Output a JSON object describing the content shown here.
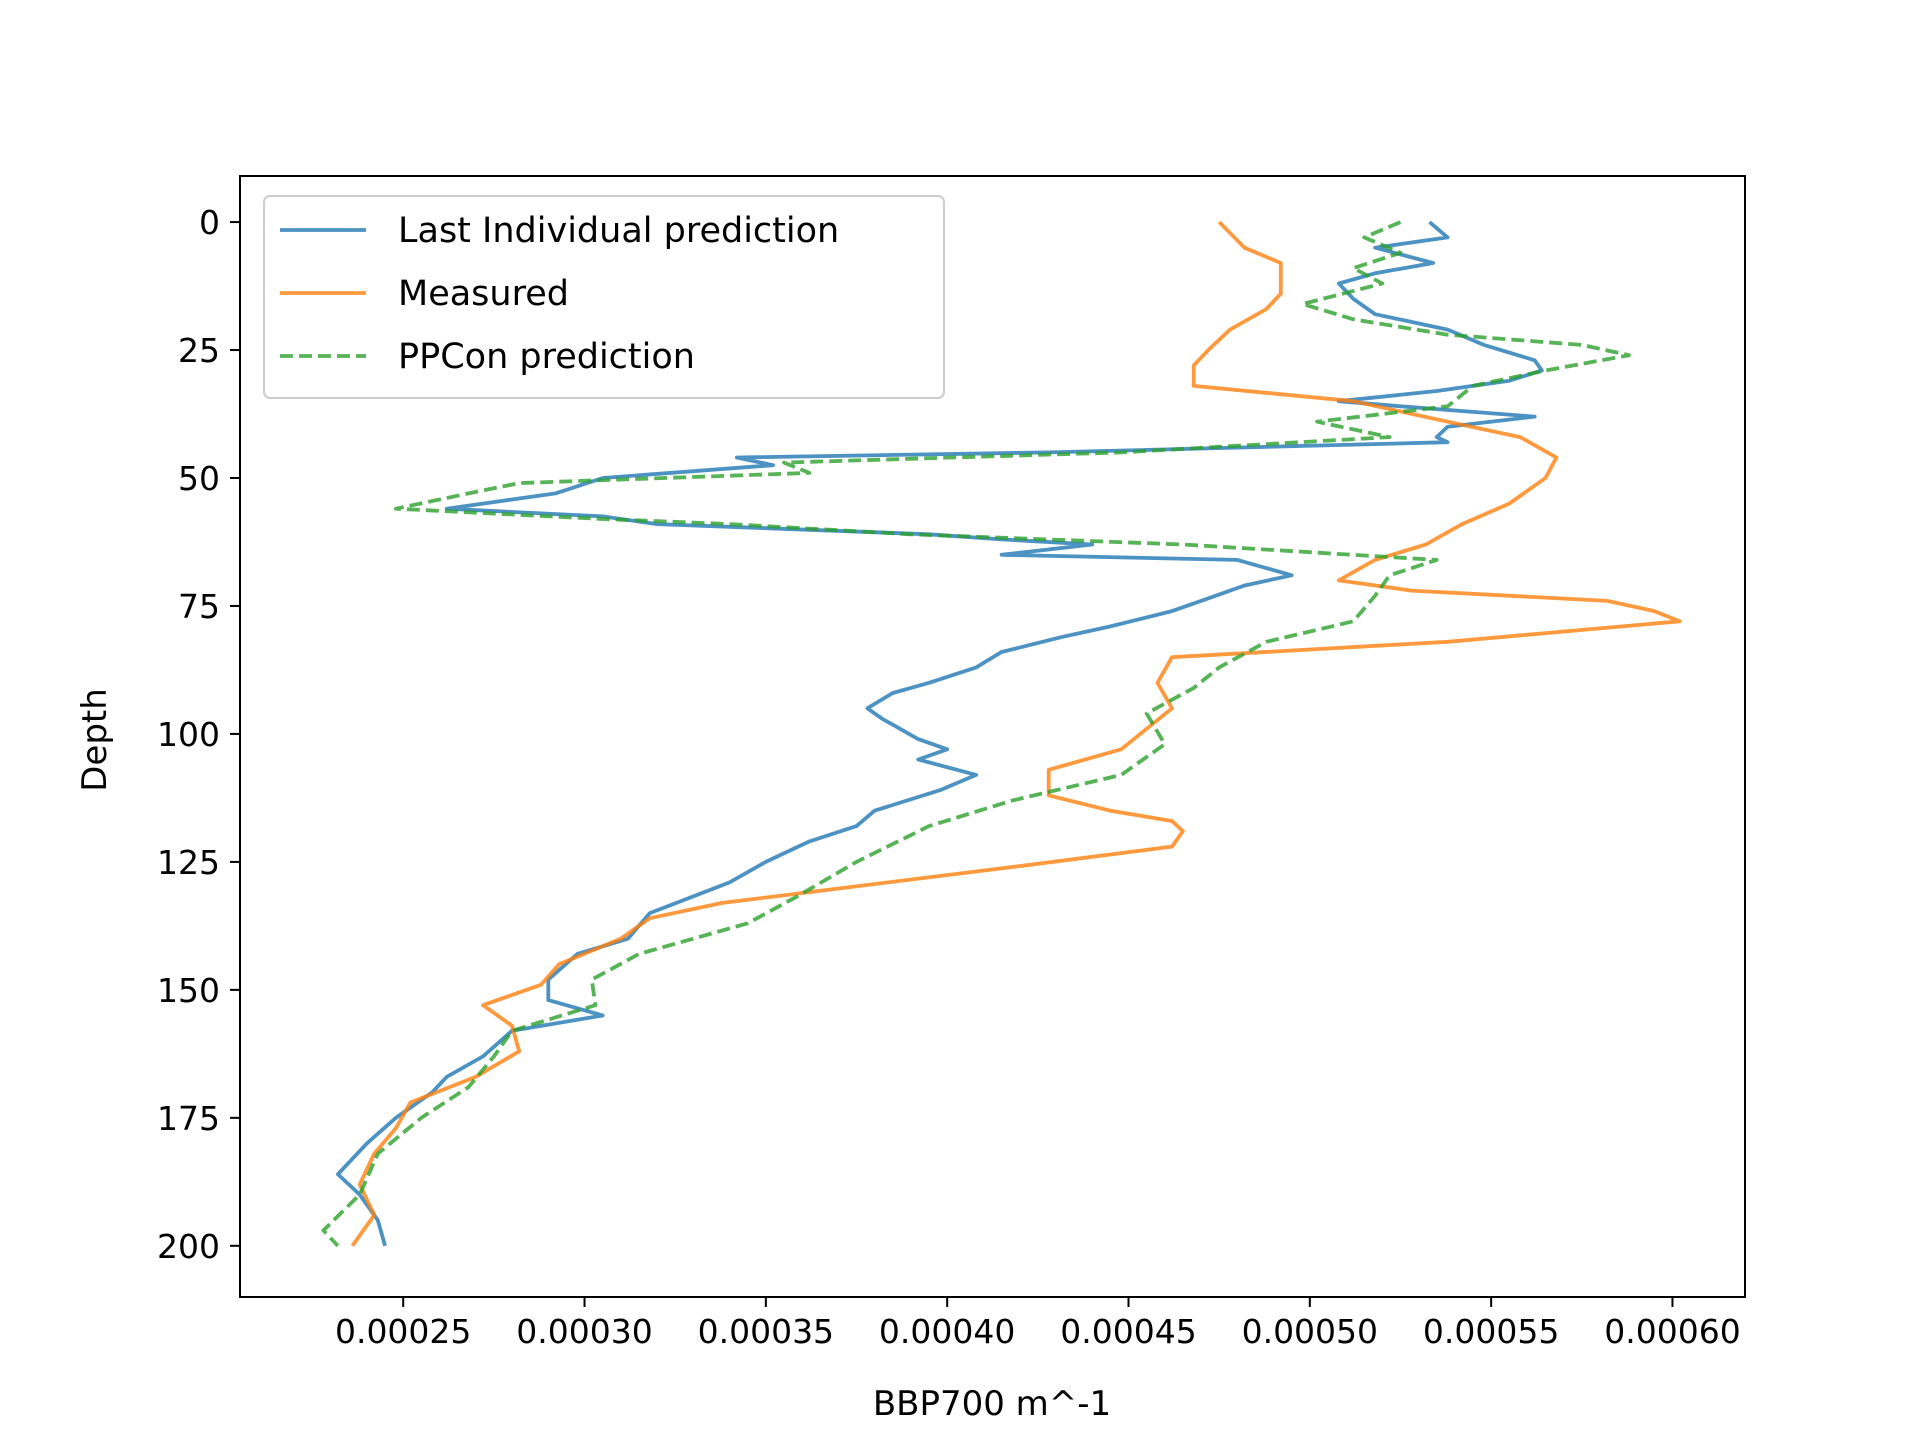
{
  "chart_data": {
    "type": "line",
    "xlabel": "BBP700 m^-1",
    "ylabel": "Depth",
    "xlim": [
      0.000205,
      0.00062
    ],
    "ylim": [
      210,
      -9
    ],
    "y_inverted": true,
    "grid": false,
    "legend_position": "top-left",
    "xticks": [
      0.00025,
      0.0003,
      0.00035,
      0.0004,
      0.00045,
      0.0005,
      0.00055,
      0.0006
    ],
    "xtick_labels": [
      "0.00025",
      "0.00030",
      "0.00035",
      "0.00040",
      "0.00045",
      "0.00050",
      "0.00055",
      "0.00060"
    ],
    "yticks": [
      0,
      25,
      50,
      75,
      100,
      125,
      150,
      175,
      200
    ],
    "ytick_labels": [
      "0",
      "25",
      "50",
      "75",
      "100",
      "125",
      "150",
      "175",
      "200"
    ],
    "series": [
      {
        "name": "Last Individual prediction",
        "color": "#1f77b4",
        "style": "solid",
        "points": [
          [
            0.000533,
            0
          ],
          [
            0.000538,
            3
          ],
          [
            0.000518,
            5
          ],
          [
            0.000534,
            8
          ],
          [
            0.000518,
            10
          ],
          [
            0.000508,
            12
          ],
          [
            0.000512,
            15
          ],
          [
            0.000518,
            18
          ],
          [
            0.000538,
            21
          ],
          [
            0.000548,
            24
          ],
          [
            0.000562,
            27
          ],
          [
            0.000564,
            29
          ],
          [
            0.000555,
            31
          ],
          [
            0.000535,
            33
          ],
          [
            0.000508,
            35
          ],
          [
            0.000525,
            36
          ],
          [
            0.000562,
            38
          ],
          [
            0.000538,
            40
          ],
          [
            0.000535,
            42
          ],
          [
            0.000538,
            43
          ],
          [
            0.000428,
            45
          ],
          [
            0.000342,
            46
          ],
          [
            0.000352,
            47.5
          ],
          [
            0.000305,
            50
          ],
          [
            0.000292,
            53
          ],
          [
            0.000262,
            56
          ],
          [
            0.000305,
            57.5
          ],
          [
            0.00032,
            59
          ],
          [
            0.000395,
            61
          ],
          [
            0.000415,
            62
          ],
          [
            0.00044,
            63
          ],
          [
            0.000415,
            65
          ],
          [
            0.00048,
            66
          ],
          [
            0.000495,
            69
          ],
          [
            0.000482,
            71
          ],
          [
            0.00047,
            74
          ],
          [
            0.000462,
            76
          ],
          [
            0.000445,
            79
          ],
          [
            0.000432,
            81
          ],
          [
            0.000415,
            84
          ],
          [
            0.000408,
            87
          ],
          [
            0.000395,
            90
          ],
          [
            0.000385,
            92
          ],
          [
            0.000378,
            95
          ],
          [
            0.000382,
            97
          ],
          [
            0.000392,
            101
          ],
          [
            0.0004,
            103
          ],
          [
            0.000392,
            105
          ],
          [
            0.000408,
            108
          ],
          [
            0.000398,
            111
          ],
          [
            0.00038,
            115
          ],
          [
            0.000375,
            118
          ],
          [
            0.000362,
            121
          ],
          [
            0.00035,
            125
          ],
          [
            0.00034,
            129
          ],
          [
            0.000318,
            135
          ],
          [
            0.000312,
            140
          ],
          [
            0.000298,
            143
          ],
          [
            0.00029,
            148
          ],
          [
            0.00029,
            152
          ],
          [
            0.000305,
            155
          ],
          [
            0.00028,
            158
          ],
          [
            0.000272,
            163
          ],
          [
            0.000262,
            167
          ],
          [
            0.000258,
            170
          ],
          [
            0.000248,
            175
          ],
          [
            0.00024,
            180
          ],
          [
            0.000232,
            186
          ],
          [
            0.000238,
            190
          ],
          [
            0.000243,
            195
          ],
          [
            0.000245,
            200
          ]
        ]
      },
      {
        "name": "Measured",
        "color": "#ff7f0e",
        "style": "solid",
        "points": [
          [
            0.000475,
            0
          ],
          [
            0.000482,
            5
          ],
          [
            0.000492,
            8
          ],
          [
            0.000492,
            14
          ],
          [
            0.000488,
            17
          ],
          [
            0.000478,
            21
          ],
          [
            0.000472,
            25
          ],
          [
            0.000468,
            28
          ],
          [
            0.000468,
            32
          ],
          [
            0.000512,
            35
          ],
          [
            0.000538,
            39
          ],
          [
            0.000558,
            42
          ],
          [
            0.000568,
            46
          ],
          [
            0.000565,
            50
          ],
          [
            0.000555,
            55
          ],
          [
            0.000542,
            59
          ],
          [
            0.000532,
            63
          ],
          [
            0.000518,
            66
          ],
          [
            0.000508,
            70
          ],
          [
            0.000528,
            72
          ],
          [
            0.000582,
            74
          ],
          [
            0.000595,
            76
          ],
          [
            0.000602,
            78
          ],
          [
            0.000538,
            82
          ],
          [
            0.000462,
            85
          ],
          [
            0.000458,
            90
          ],
          [
            0.000462,
            95
          ],
          [
            0.000455,
            99
          ],
          [
            0.000448,
            103
          ],
          [
            0.000428,
            107
          ],
          [
            0.000428,
            112
          ],
          [
            0.000445,
            115
          ],
          [
            0.000462,
            117
          ],
          [
            0.000465,
            119
          ],
          [
            0.000462,
            122
          ],
          [
            0.000418,
            126
          ],
          [
            0.000338,
            133
          ],
          [
            0.000318,
            136
          ],
          [
            0.00031,
            140
          ],
          [
            0.000293,
            145
          ],
          [
            0.000288,
            149
          ],
          [
            0.000272,
            153
          ],
          [
            0.00028,
            157
          ],
          [
            0.000282,
            162
          ],
          [
            0.00027,
            167
          ],
          [
            0.000252,
            172
          ],
          [
            0.000248,
            177
          ],
          [
            0.000242,
            182
          ],
          [
            0.000238,
            188
          ],
          [
            0.000242,
            194
          ],
          [
            0.000236,
            200
          ]
        ]
      },
      {
        "name": "PPCon prediction",
        "color": "#2ca02c",
        "style": "dashed",
        "points": [
          [
            0.000525,
            0
          ],
          [
            0.000515,
            3
          ],
          [
            0.000525,
            6
          ],
          [
            0.000512,
            9
          ],
          [
            0.00052,
            12
          ],
          [
            0.000498,
            16
          ],
          [
            0.000512,
            19
          ],
          [
            0.000538,
            22
          ],
          [
            0.000575,
            24
          ],
          [
            0.000588,
            26
          ],
          [
            0.000565,
            29
          ],
          [
            0.000545,
            32
          ],
          [
            0.000538,
            36
          ],
          [
            0.000502,
            39
          ],
          [
            0.000522,
            42
          ],
          [
            0.000448,
            45
          ],
          [
            0.000355,
            47
          ],
          [
            0.000362,
            49
          ],
          [
            0.000282,
            51
          ],
          [
            0.000268,
            53
          ],
          [
            0.000248,
            56
          ],
          [
            0.000305,
            58
          ],
          [
            0.00034,
            59
          ],
          [
            0.00039,
            61
          ],
          [
            0.000465,
            63
          ],
          [
            0.000535,
            66
          ],
          [
            0.000522,
            69
          ],
          [
            0.000518,
            73
          ],
          [
            0.000512,
            78
          ],
          [
            0.000488,
            82
          ],
          [
            0.000475,
            87
          ],
          [
            0.000468,
            91
          ],
          [
            0.000455,
            96
          ],
          [
            0.00046,
            102
          ],
          [
            0.000448,
            108
          ],
          [
            0.000418,
            113
          ],
          [
            0.000395,
            118
          ],
          [
            0.000375,
            125
          ],
          [
            0.000358,
            132
          ],
          [
            0.000345,
            137
          ],
          [
            0.000315,
            143
          ],
          [
            0.000302,
            148
          ],
          [
            0.000303,
            153
          ],
          [
            0.00028,
            158
          ],
          [
            0.000275,
            163
          ],
          [
            0.000268,
            169
          ],
          [
            0.000255,
            175
          ],
          [
            0.000243,
            182
          ],
          [
            0.000238,
            190
          ],
          [
            0.000228,
            197
          ],
          [
            0.000232,
            200
          ]
        ]
      }
    ]
  }
}
